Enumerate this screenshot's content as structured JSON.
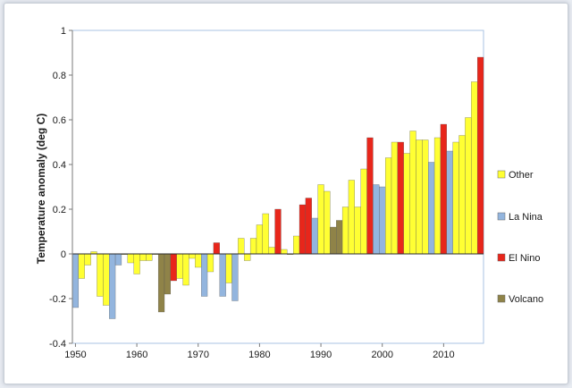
{
  "chart_data": {
    "type": "bar",
    "title": "",
    "xlabel": "",
    "ylabel": "Temperature anomaly (deg C)",
    "ylim": [
      -0.4,
      1.0
    ],
    "xlim": [
      1949.5,
      2016.5
    ],
    "yticks": [
      "-0.4",
      "-0.2",
      "0",
      "0.2",
      "0.4",
      "0.6",
      "0.8",
      "1"
    ],
    "ytick_values": [
      -0.4,
      -0.2,
      0,
      0.2,
      0.4,
      0.6,
      0.8,
      1.0
    ],
    "xticks": [
      "1950",
      "1960",
      "1970",
      "1980",
      "1990",
      "2000",
      "2010"
    ],
    "xtick_values": [
      1950,
      1960,
      1970,
      1980,
      1990,
      2000,
      2010
    ],
    "grid": false,
    "legend_position": "right",
    "colors": {
      "Other": "#ffff33",
      "La Nina": "#93b5de",
      "El Nino": "#e8261b",
      "Volcano": "#8f8348"
    },
    "legend": [
      {
        "label": "Other",
        "key": "Other"
      },
      {
        "label": "La Nina",
        "key": "La Nina"
      },
      {
        "label": "El Nino",
        "key": "El Nino"
      },
      {
        "label": "Volcano",
        "key": "Volcano"
      }
    ],
    "bars": [
      {
        "year": 1950,
        "value": -0.24,
        "category": "La Nina"
      },
      {
        "year": 1951,
        "value": -0.11,
        "category": "Other"
      },
      {
        "year": 1952,
        "value": -0.05,
        "category": "Other"
      },
      {
        "year": 1953,
        "value": 0.01,
        "category": "Other"
      },
      {
        "year": 1954,
        "value": -0.19,
        "category": "Other"
      },
      {
        "year": 1955,
        "value": -0.23,
        "category": "Other"
      },
      {
        "year": 1956,
        "value": -0.29,
        "category": "La Nina"
      },
      {
        "year": 1957,
        "value": -0.05,
        "category": "La Nina"
      },
      {
        "year": 1958,
        "value": 0.0,
        "category": "Other"
      },
      {
        "year": 1959,
        "value": -0.04,
        "category": "Other"
      },
      {
        "year": 1960,
        "value": -0.09,
        "category": "Other"
      },
      {
        "year": 1961,
        "value": -0.03,
        "category": "Other"
      },
      {
        "year": 1962,
        "value": -0.03,
        "category": "Other"
      },
      {
        "year": 1963,
        "value": 0.0,
        "category": "Other"
      },
      {
        "year": 1964,
        "value": -0.26,
        "category": "Volcano"
      },
      {
        "year": 1965,
        "value": -0.18,
        "category": "Volcano"
      },
      {
        "year": 1966,
        "value": -0.12,
        "category": "El Nino"
      },
      {
        "year": 1967,
        "value": -0.11,
        "category": "Other"
      },
      {
        "year": 1968,
        "value": -0.14,
        "category": "Other"
      },
      {
        "year": 1969,
        "value": -0.02,
        "category": "Other"
      },
      {
        "year": 1970,
        "value": -0.06,
        "category": "Other"
      },
      {
        "year": 1971,
        "value": -0.19,
        "category": "La Nina"
      },
      {
        "year": 1972,
        "value": -0.08,
        "category": "Other"
      },
      {
        "year": 1973,
        "value": 0.05,
        "category": "El Nino"
      },
      {
        "year": 1974,
        "value": -0.19,
        "category": "La Nina"
      },
      {
        "year": 1975,
        "value": -0.13,
        "category": "Other"
      },
      {
        "year": 1976,
        "value": -0.21,
        "category": "La Nina"
      },
      {
        "year": 1977,
        "value": 0.07,
        "category": "Other"
      },
      {
        "year": 1978,
        "value": -0.03,
        "category": "Other"
      },
      {
        "year": 1979,
        "value": 0.07,
        "category": "Other"
      },
      {
        "year": 1980,
        "value": 0.13,
        "category": "Other"
      },
      {
        "year": 1981,
        "value": 0.18,
        "category": "Other"
      },
      {
        "year": 1982,
        "value": 0.03,
        "category": "Other"
      },
      {
        "year": 1983,
        "value": 0.2,
        "category": "El Nino"
      },
      {
        "year": 1984,
        "value": 0.02,
        "category": "Other"
      },
      {
        "year": 1985,
        "value": 0.0,
        "category": "Other"
      },
      {
        "year": 1986,
        "value": 0.08,
        "category": "Other"
      },
      {
        "year": 1987,
        "value": 0.22,
        "category": "El Nino"
      },
      {
        "year": 1988,
        "value": 0.25,
        "category": "El Nino"
      },
      {
        "year": 1989,
        "value": 0.16,
        "category": "La Nina"
      },
      {
        "year": 1990,
        "value": 0.31,
        "category": "Other"
      },
      {
        "year": 1991,
        "value": 0.28,
        "category": "Other"
      },
      {
        "year": 1992,
        "value": 0.12,
        "category": "Volcano"
      },
      {
        "year": 1993,
        "value": 0.15,
        "category": "Volcano"
      },
      {
        "year": 1994,
        "value": 0.21,
        "category": "Other"
      },
      {
        "year": 1995,
        "value": 0.33,
        "category": "Other"
      },
      {
        "year": 1996,
        "value": 0.21,
        "category": "Other"
      },
      {
        "year": 1997,
        "value": 0.38,
        "category": "Other"
      },
      {
        "year": 1998,
        "value": 0.52,
        "category": "El Nino"
      },
      {
        "year": 1999,
        "value": 0.31,
        "category": "La Nina"
      },
      {
        "year": 2000,
        "value": 0.3,
        "category": "La Nina"
      },
      {
        "year": 2001,
        "value": 0.43,
        "category": "Other"
      },
      {
        "year": 2002,
        "value": 0.5,
        "category": "Other"
      },
      {
        "year": 2003,
        "value": 0.5,
        "category": "El Nino"
      },
      {
        "year": 2004,
        "value": 0.45,
        "category": "Other"
      },
      {
        "year": 2005,
        "value": 0.55,
        "category": "Other"
      },
      {
        "year": 2006,
        "value": 0.51,
        "category": "Other"
      },
      {
        "year": 2007,
        "value": 0.51,
        "category": "Other"
      },
      {
        "year": 2008,
        "value": 0.41,
        "category": "La Nina"
      },
      {
        "year": 2009,
        "value": 0.52,
        "category": "Other"
      },
      {
        "year": 2010,
        "value": 0.58,
        "category": "El Nino"
      },
      {
        "year": 2011,
        "value": 0.46,
        "category": "La Nina"
      },
      {
        "year": 2012,
        "value": 0.5,
        "category": "Other"
      },
      {
        "year": 2013,
        "value": 0.53,
        "category": "Other"
      },
      {
        "year": 2014,
        "value": 0.61,
        "category": "Other"
      },
      {
        "year": 2015,
        "value": 0.77,
        "category": "Other"
      },
      {
        "year": 2016,
        "value": 0.88,
        "category": "El Nino"
      }
    ]
  }
}
